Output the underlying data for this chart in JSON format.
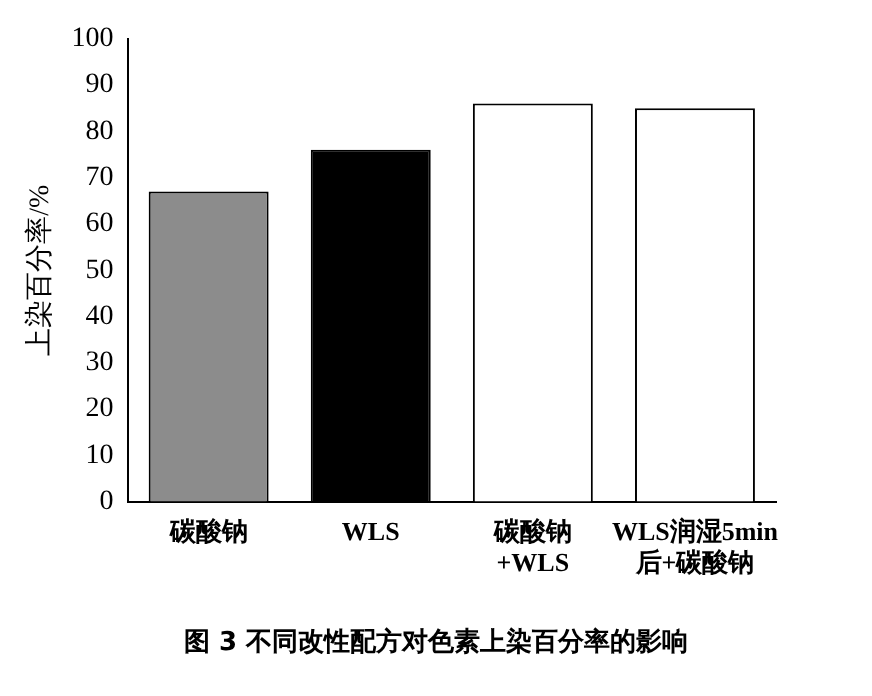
{
  "chart_data": {
    "type": "bar",
    "title": "图 3   不同改性配方对色素上染百分率的影响",
    "ylabel": "上染百分率/%",
    "categories": [
      "碳酸钠",
      "WLS",
      "碳酸钠\n+WLS",
      "WLS润湿5min\n后+碳酸钠"
    ],
    "values": [
      67,
      76,
      86,
      85
    ],
    "colors": [
      "#8c8c8c",
      "#000000",
      "#ffffff",
      "#ffffff"
    ],
    "ylim": [
      0,
      100
    ],
    "yticks": [
      0,
      10,
      20,
      30,
      40,
      50,
      60,
      70,
      80,
      90,
      100
    ],
    "grid": false,
    "legend": false
  }
}
